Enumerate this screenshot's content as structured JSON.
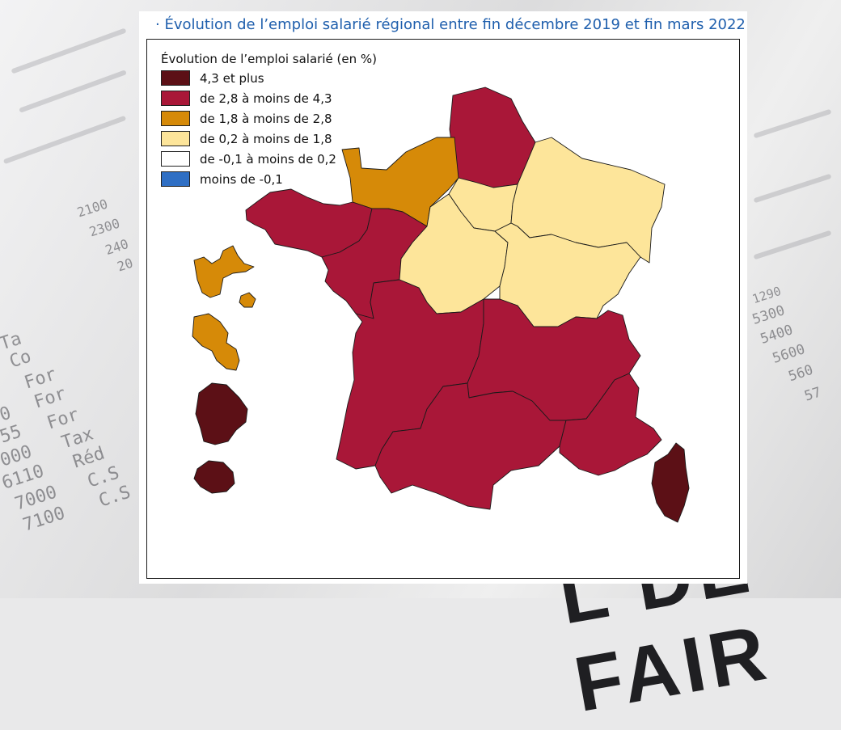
{
  "title": "· Évolution de l’emploi salarié régional entre fin décembre 2019 et fin mars 2022",
  "legend": {
    "title": "Évolution de l’emploi salarié (en %)",
    "classes": [
      {
        "label": "4,3 et plus",
        "color": "#5c1016"
      },
      {
        "label": "de 2,8 à moins de 4,3",
        "color": "#a91738"
      },
      {
        "label": "de 1,8 à moins de 2,8",
        "color": "#d68a08"
      },
      {
        "label": "de 0,2 à moins de 1,8",
        "color": "#fde59a"
      },
      {
        "label": "de -0,1 à moins de 0,2",
        "color": "#ffffff"
      },
      {
        "label": "moins de -0,1",
        "color": "#2f6fc4"
      }
    ]
  },
  "regions": [
    {
      "id": "hauts-de-france",
      "class": 1
    },
    {
      "id": "normandie",
      "class": 2
    },
    {
      "id": "bretagne",
      "class": 1
    },
    {
      "id": "pays-de-la-loire",
      "class": 1
    },
    {
      "id": "ile-de-france",
      "class": 3
    },
    {
      "id": "grand-est",
      "class": 3
    },
    {
      "id": "centre-val-de-loire",
      "class": 3
    },
    {
      "id": "bourgogne-franche-comte",
      "class": 3
    },
    {
      "id": "nouvelle-aquitaine",
      "class": 1
    },
    {
      "id": "auvergne-rhone-alpes",
      "class": 1
    },
    {
      "id": "occitanie",
      "class": 1
    },
    {
      "id": "provence-alpes-cote-dazur",
      "class": 1
    },
    {
      "id": "corse",
      "class": 0
    },
    {
      "id": "guadeloupe",
      "class": 2
    },
    {
      "id": "martinique",
      "class": 2
    },
    {
      "id": "guyane",
      "class": 0
    },
    {
      "id": "la-reunion",
      "class": 0
    }
  ],
  "background": {
    "numbers": [
      "2100",
      "2300",
      "240",
      "20",
      "0",
      "55",
      "000",
      "6110",
      "7000",
      "7100",
      "5300",
      "5400",
      "5600",
      "560",
      "57",
      "1290"
    ],
    "words": [
      "Ta",
      "Co",
      "For",
      "For",
      "For",
      "Tax",
      "Réd",
      "C.S",
      "C.S"
    ],
    "big_text": "L DE FAIR"
  }
}
